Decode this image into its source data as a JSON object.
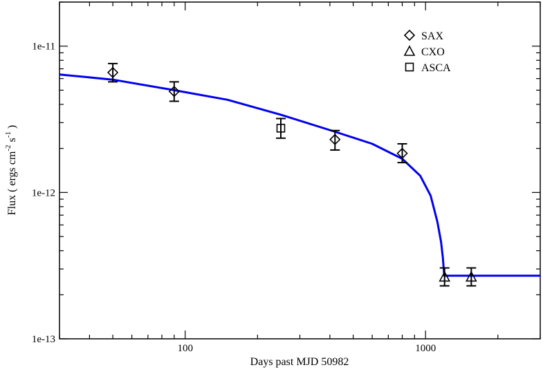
{
  "chart_data": {
    "type": "scatter",
    "title": "",
    "xlabel": "Days past MJD 50982",
    "ylabel": {
      "parts": [
        "Flux ( ergs cm",
        "-2",
        " s",
        "-1",
        " )"
      ]
    },
    "x_scale": "log",
    "y_scale": "log",
    "xlim": [
      30,
      3000
    ],
    "ylim": [
      1e-13,
      2e-11
    ],
    "x_ticks": [
      {
        "value": 100,
        "label": "100"
      },
      {
        "value": 1000,
        "label": "1000"
      }
    ],
    "y_ticks": [
      {
        "value": 1e-13,
        "label": "1e-13"
      },
      {
        "value": 1e-12,
        "label": "1e-12"
      },
      {
        "value": 1e-11,
        "label": "1e-11"
      }
    ],
    "grid": false,
    "legend_position": "top-right",
    "series": [
      {
        "name": "SAX",
        "marker": "diamond",
        "points": [
          {
            "x": 50,
            "y": 6.6e-12,
            "ylo": 5.7e-12,
            "yhi": 7.6e-12
          },
          {
            "x": 90,
            "y": 4.9e-12,
            "ylo": 4.2e-12,
            "yhi": 5.7e-12
          },
          {
            "x": 420,
            "y": 2.3e-12,
            "ylo": 1.95e-12,
            "yhi": 2.65e-12
          },
          {
            "x": 800,
            "y": 1.85e-12,
            "ylo": 1.6e-12,
            "yhi": 2.15e-12
          }
        ]
      },
      {
        "name": "CXO",
        "marker": "triangle",
        "points": [
          {
            "x": 1200,
            "y": 2.65e-13,
            "ylo": 2.3e-13,
            "yhi": 3.05e-13
          },
          {
            "x": 1550,
            "y": 2.65e-13,
            "ylo": 2.3e-13,
            "yhi": 3.05e-13
          }
        ]
      },
      {
        "name": "ASCA",
        "marker": "square",
        "points": [
          {
            "x": 250,
            "y": 2.75e-12,
            "ylo": 2.35e-12,
            "yhi": 3.2e-12
          }
        ]
      }
    ],
    "model_curve": {
      "color": "#0000ee",
      "points": [
        {
          "x": 30,
          "y": 6.4e-12
        },
        {
          "x": 50,
          "y": 5.9e-12
        },
        {
          "x": 90,
          "y": 5e-12
        },
        {
          "x": 150,
          "y": 4.3e-12
        },
        {
          "x": 250,
          "y": 3.4e-12
        },
        {
          "x": 420,
          "y": 2.6e-12
        },
        {
          "x": 600,
          "y": 2.15e-12
        },
        {
          "x": 800,
          "y": 1.7e-12
        },
        {
          "x": 950,
          "y": 1.3e-12
        },
        {
          "x": 1050,
          "y": 9.5e-13
        },
        {
          "x": 1120,
          "y": 6.3e-13
        },
        {
          "x": 1160,
          "y": 4.6e-13
        },
        {
          "x": 1180,
          "y": 3.6e-13
        },
        {
          "x": 1190,
          "y": 3e-13
        },
        {
          "x": 1196,
          "y": 2.7e-13
        },
        {
          "x": 3000,
          "y": 2.7e-13
        }
      ]
    }
  }
}
